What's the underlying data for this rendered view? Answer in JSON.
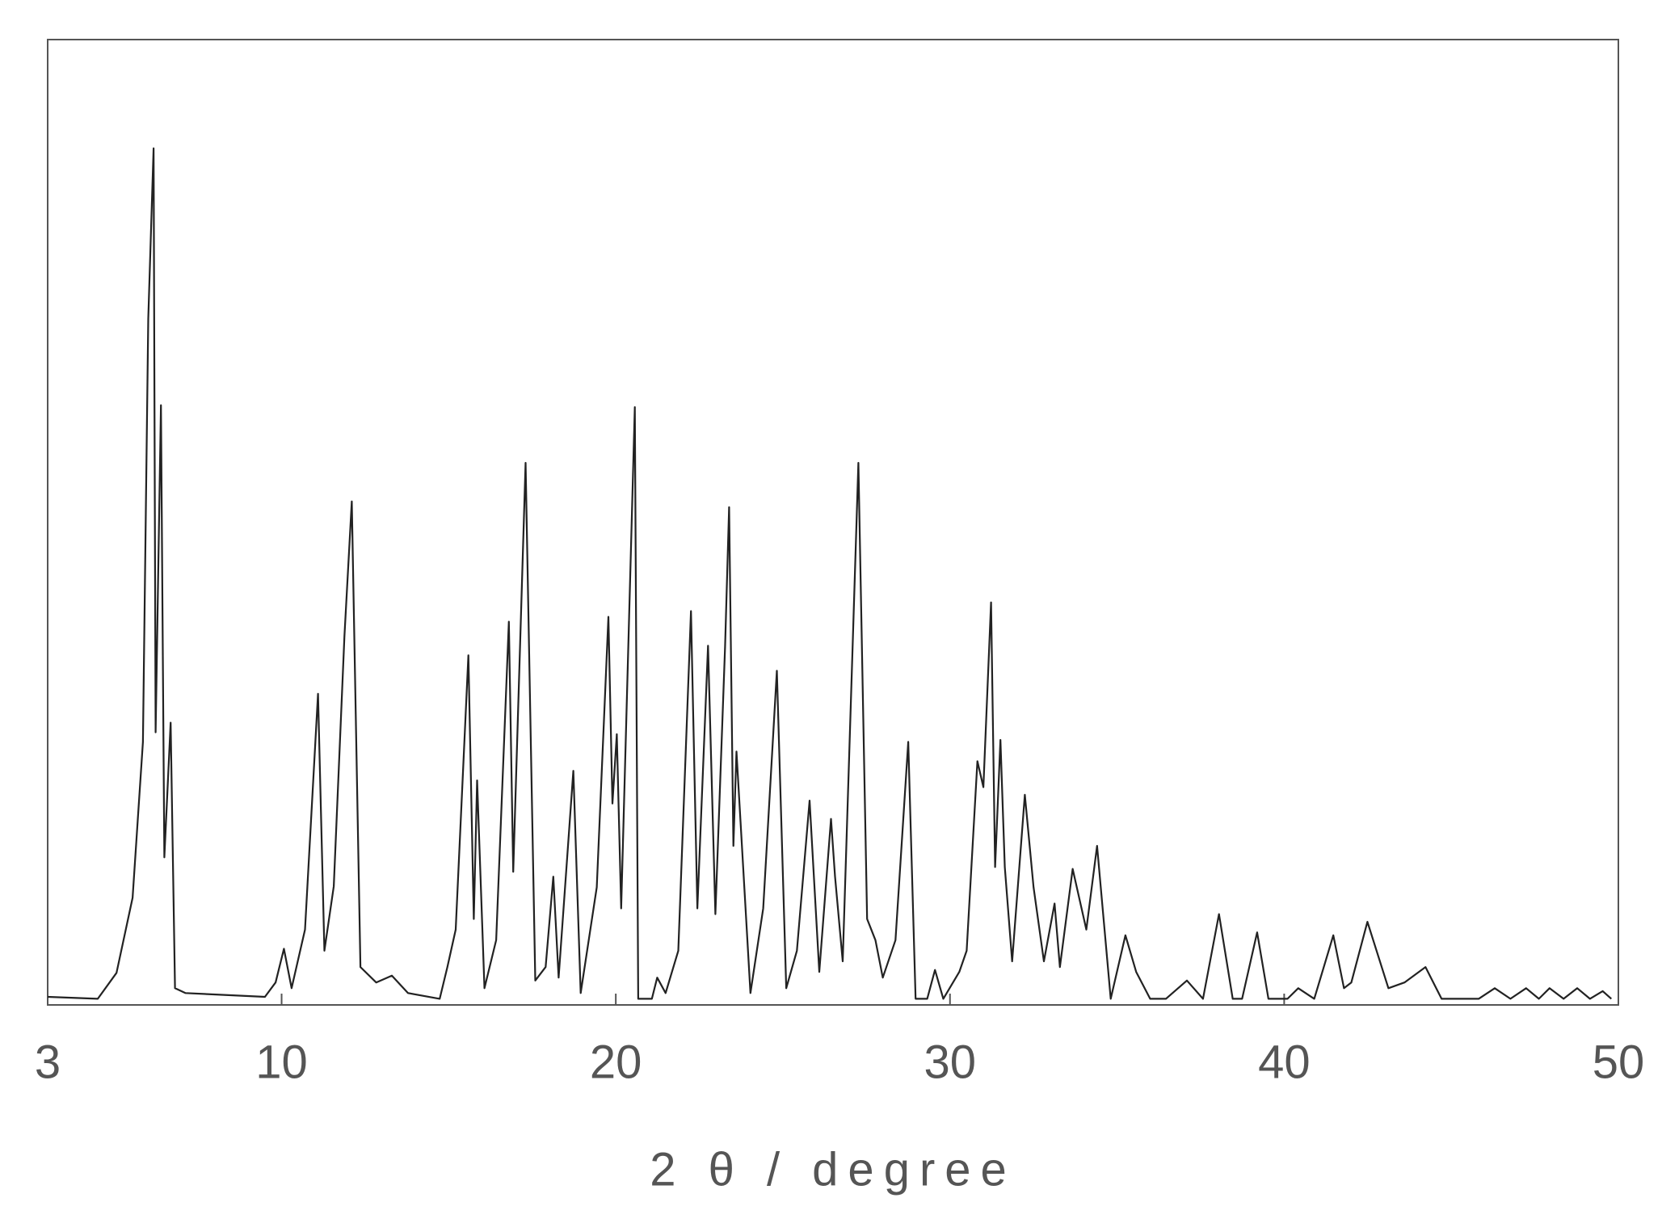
{
  "chart_data": {
    "type": "line",
    "x_label": "2 θ / degree",
    "x": [
      3,
      4.5,
      5.06,
      5.54,
      5.85,
      6.01,
      6.17,
      6.23,
      6.39,
      6.49,
      6.68,
      6.81,
      7.12,
      9.5,
      9.82,
      10.07,
      10.3,
      10.7,
      11.09,
      11.28,
      11.56,
      11.88,
      12.1,
      12.36,
      12.83,
      13.3,
      13.78,
      14.73,
      14.96,
      15.21,
      15.59,
      15.75,
      15.85,
      16.07,
      16.42,
      16.8,
      16.93,
      17.3,
      17.59,
      17.9,
      18.13,
      18.29,
      18.73,
      18.95,
      19.43,
      19.78,
      19.9,
      20.03,
      20.16,
      20.57,
      20.67,
      21.08,
      21.24,
      21.49,
      21.87,
      22.25,
      22.44,
      22.76,
      22.98,
      23.27,
      23.39,
      23.52,
      23.61,
      24.03,
      24.41,
      24.82,
      25.1,
      25.42,
      25.8,
      26.09,
      26.44,
      26.56,
      26.79,
      27.26,
      27.52,
      27.77,
      27.99,
      28.37,
      28.75,
      28.97,
      29.32,
      29.55,
      29.8,
      30.28,
      30.5,
      30.82,
      31.0,
      31.23,
      31.35,
      31.51,
      31.64,
      31.86,
      32.24,
      32.5,
      32.81,
      33.13,
      33.29,
      33.67,
      34.08,
      34.4,
      34.81,
      35.25,
      35.57,
      35.99,
      36.46,
      37.09,
      37.57,
      38.05,
      38.46,
      38.74,
      39.19,
      39.53,
      40.1,
      40.42,
      40.9,
      41.47,
      41.79,
      42.01,
      42.49,
      43.12,
      43.6,
      44.23,
      44.71,
      45.82,
      46.3,
      46.77,
      47.24,
      47.62,
      47.94,
      48.36,
      48.77,
      49.15,
      49.53,
      49.79
    ],
    "y": [
      0.5,
      0.3,
      3,
      10.8,
      27,
      71,
      88.7,
      28,
      62,
      15,
      29,
      1.4,
      0.9,
      0.5,
      2,
      5.5,
      1.4,
      7.5,
      32,
      5.3,
      12,
      38,
      52,
      3.6,
      2,
      2.7,
      0.9,
      0.3,
      3.6,
      7.5,
      36,
      8.6,
      23,
      1.4,
      6.4,
      39.5,
      13.5,
      56,
      2.2,
      3.6,
      13,
      2.5,
      24,
      0.9,
      11.9,
      40,
      20.6,
      27.8,
      9.7,
      61.8,
      0.3,
      0.3,
      2.5,
      0.9,
      5.3,
      40.6,
      9.7,
      37,
      9.1,
      36.9,
      51.4,
      16.2,
      26,
      0.9,
      9.7,
      34.4,
      1.4,
      5.3,
      20.9,
      3.1,
      19,
      13,
      4.2,
      56,
      8.6,
      6.4,
      2.5,
      6.4,
      27,
      0.3,
      0.3,
      3.3,
      0.3,
      3.1,
      5.3,
      25,
      22.3,
      41.5,
      14,
      27.2,
      14,
      4.2,
      21.5,
      11.9,
      4.2,
      10.2,
      3.6,
      13.8,
      7.5,
      16.2,
      0.3,
      6.9,
      3.1,
      0.3,
      0.3,
      2.2,
      0.3,
      9.1,
      0.3,
      0.3,
      7.2,
      0.3,
      0.3,
      1.4,
      0.3,
      6.9,
      1.4,
      2,
      8.3,
      1.4,
      2,
      3.6,
      0.3,
      0.3,
      1.4,
      0.3,
      1.4,
      0.3,
      1.4,
      0.3,
      1.4,
      0.3,
      1.1,
      0.3
    ],
    "color": "#222222",
    "xlim": [
      3,
      50
    ],
    "xticks": [
      3,
      10,
      20,
      30,
      40,
      50
    ],
    "ylim": [
      0,
      100
    ]
  }
}
